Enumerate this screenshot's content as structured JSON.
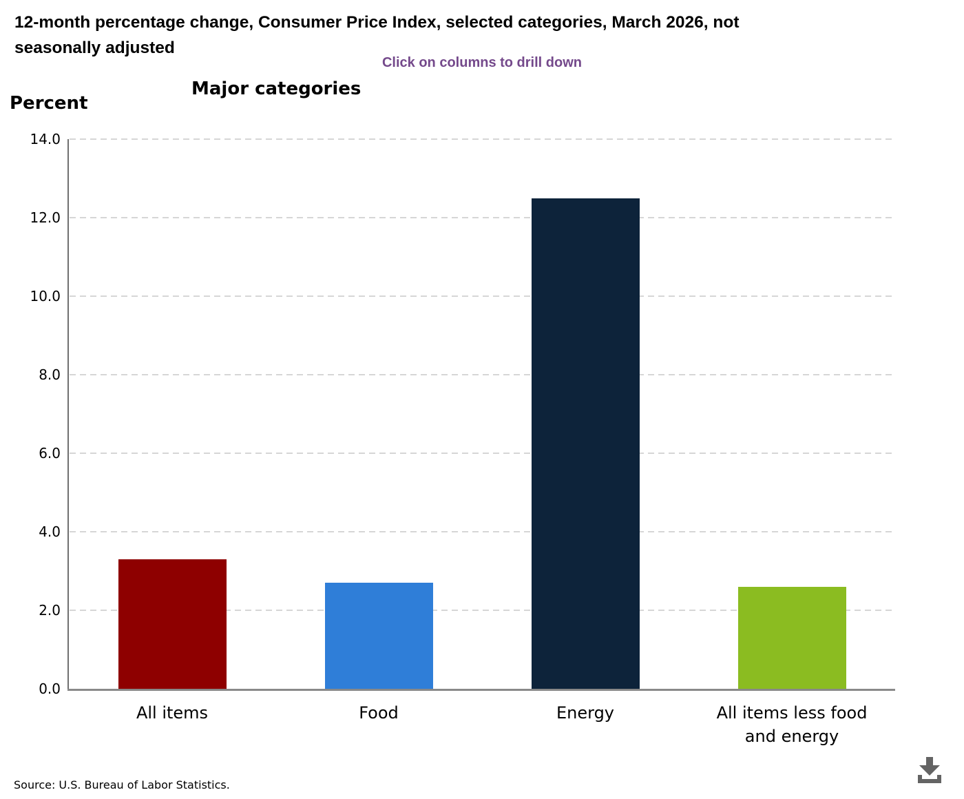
{
  "page": {
    "title": "12-month percentage change, Consumer Price Index, selected categories, March 2026, not\nseasonally adjusted",
    "subtitle": "Click on columns to drill down",
    "source": "Source: U.S. Bureau of Labor Statistics.",
    "download_icon": "download-icon",
    "icon_color": "#646464"
  },
  "chart_data": {
    "type": "bar",
    "title": "Major categories",
    "ylabel": "Percent",
    "categories": [
      "All items",
      "Food",
      "Energy",
      "All items less food\nand energy"
    ],
    "values": [
      3.3,
      2.7,
      12.5,
      2.6
    ],
    "bar_colors": [
      "#8e0000",
      "#2f7ed8",
      "#0d233a",
      "#8bbc21"
    ],
    "ylim": [
      0,
      14
    ],
    "ytick_step": 2,
    "ytick_labels": [
      "0.0",
      "2.0",
      "4.0",
      "6.0",
      "8.0",
      "10.0",
      "12.0",
      "14.0"
    ],
    "grid": "horizontal-dashed",
    "gridline_color": "#d6d6d6",
    "axis_color": "#898989",
    "legend": "none",
    "annotation": "columns are clickable (drill down)"
  }
}
